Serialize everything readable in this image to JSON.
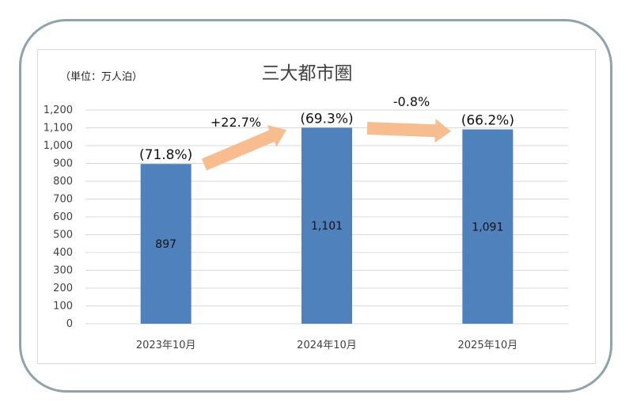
{
  "chart_data": {
    "type": "bar",
    "title": "三大都市圏",
    "unit_label": "（単位：万人泊）",
    "categories": [
      "2023年10月",
      "2024年10月",
      "2025年10月"
    ],
    "values": [
      897,
      1101,
      1091
    ],
    "value_labels": [
      "897",
      "1,101",
      "1,091"
    ],
    "share_labels": [
      "(71.8%)",
      "(69.3%)",
      "(66.2%)"
    ],
    "changes": [
      "+22.7%",
      "-0.8%"
    ],
    "ylim": [
      0,
      1200
    ],
    "yticks": [
      "0",
      "100",
      "200",
      "300",
      "400",
      "500",
      "600",
      "700",
      "800",
      "900",
      "1,000",
      "1,100",
      "1,200"
    ],
    "grid": true,
    "colors": {
      "bar": "#4f81bd",
      "arrow": "#f7bd8f",
      "grid": "#d9d9d9",
      "frame": "#8fa3a8"
    }
  }
}
